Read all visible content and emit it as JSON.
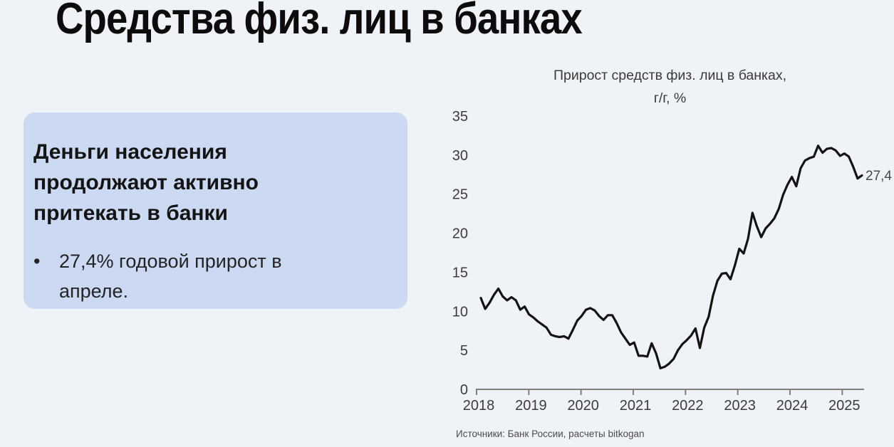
{
  "page_title": "Средства физ. лиц в банках",
  "callout": {
    "heading": "Деньги населения продолжают активно притекать в банки",
    "heading_lines": [
      "Деньги населения",
      "продолжают активно",
      "притекать в банки"
    ],
    "bullet_dot": "•",
    "bullet": "27,4% годовой прирост в апреле.",
    "bullet_lines": [
      "27,4% годовой прирост в",
      "апреле."
    ]
  },
  "chart_data": {
    "type": "line",
    "title": "Прирост средств физ. лиц в банках, г/г, %",
    "title_lines": [
      "Прирост средств физ. лиц в банках,",
      "г/г, %"
    ],
    "xlabel": "",
    "ylabel": "",
    "ylim": [
      0,
      35
    ],
    "y_ticks": [
      0,
      5,
      10,
      15,
      20,
      25,
      30,
      35
    ],
    "x_tick_labels": [
      "2018",
      "2019",
      "2020",
      "2021",
      "2022",
      "2023",
      "2024",
      "2025"
    ],
    "frequency": "monthly",
    "x_start": "2018-01",
    "x_end": "2025-04",
    "end_label": "27,4",
    "grid": false,
    "legend": "none",
    "series_name": "Прирост средств физ. лиц в банках, г/г, %",
    "months": [
      "2018-01",
      "2018-02",
      "2018-03",
      "2018-04",
      "2018-05",
      "2018-06",
      "2018-07",
      "2018-08",
      "2018-09",
      "2018-10",
      "2018-11",
      "2018-12",
      "2019-01",
      "2019-02",
      "2019-03",
      "2019-04",
      "2019-05",
      "2019-06",
      "2019-07",
      "2019-08",
      "2019-09",
      "2019-10",
      "2019-11",
      "2019-12",
      "2020-01",
      "2020-02",
      "2020-03",
      "2020-04",
      "2020-05",
      "2020-06",
      "2020-07",
      "2020-08",
      "2020-09",
      "2020-10",
      "2020-11",
      "2020-12",
      "2021-01",
      "2021-02",
      "2021-03",
      "2021-04",
      "2021-05",
      "2021-06",
      "2021-07",
      "2021-08",
      "2021-09",
      "2021-10",
      "2021-11",
      "2021-12",
      "2022-01",
      "2022-02",
      "2022-03",
      "2022-04",
      "2022-05",
      "2022-06",
      "2022-07",
      "2022-08",
      "2022-09",
      "2022-10",
      "2022-11",
      "2022-12",
      "2023-01",
      "2023-02",
      "2023-03",
      "2023-04",
      "2023-05",
      "2023-06",
      "2023-07",
      "2023-08",
      "2023-09",
      "2023-10",
      "2023-11",
      "2023-12",
      "2024-01",
      "2024-02",
      "2024-03",
      "2024-04",
      "2024-05",
      "2024-06",
      "2024-07",
      "2024-08",
      "2024-09",
      "2024-10",
      "2024-11",
      "2024-12",
      "2025-01",
      "2025-02",
      "2025-03",
      "2025-04"
    ],
    "values": [
      11.7,
      10.3,
      11.1,
      12.1,
      12.9,
      11.9,
      11.4,
      11.8,
      11.4,
      10.2,
      10.6,
      9.6,
      9.2,
      8.7,
      8.3,
      7.9,
      7.0,
      6.8,
      6.7,
      6.8,
      6.5,
      7.6,
      8.8,
      9.4,
      10.2,
      10.4,
      10.1,
      9.4,
      8.9,
      9.5,
      9.5,
      8.5,
      7.3,
      6.5,
      5.7,
      6.0,
      4.3,
      4.3,
      4.2,
      5.9,
      4.6,
      2.7,
      2.9,
      3.3,
      3.9,
      5.0,
      5.8,
      6.3,
      6.9,
      7.8,
      5.3,
      7.9,
      9.3,
      12.0,
      13.9,
      14.8,
      14.9,
      14.1,
      15.9,
      18.0,
      17.4,
      19.3,
      22.6,
      20.9,
      19.5,
      20.6,
      21.2,
      21.9,
      23.1,
      24.9,
      26.2,
      27.2,
      26.0,
      28.3,
      29.3,
      29.6,
      29.8,
      31.2,
      30.3,
      30.8,
      30.9,
      30.6,
      29.9,
      30.2,
      29.8,
      28.5,
      27.0,
      27.4
    ]
  },
  "source_note": "Источники: Банк России, расчеты bitkogan",
  "colors": {
    "background": "#eff3f7",
    "callout_box": "#ccd9f2",
    "line": "#131313",
    "axis": "#7f7f7f",
    "tick_label": "#3c3c3c",
    "end_label": "#474747",
    "title_text": "#0c0c0c"
  }
}
